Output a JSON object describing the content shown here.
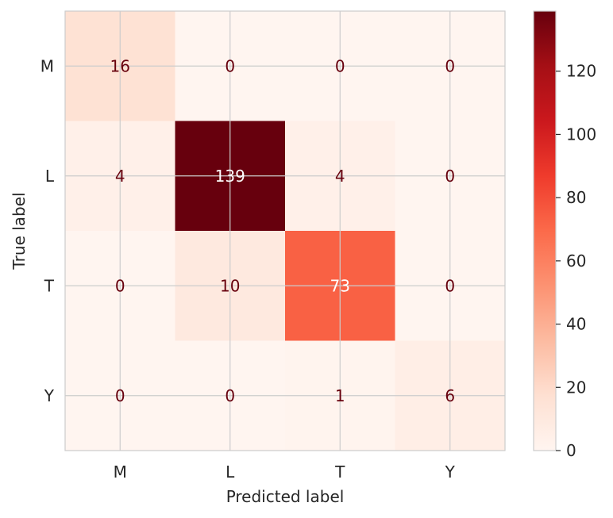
{
  "chart_data": {
    "type": "heatmap",
    "title": "",
    "xlabel": "Predicted label",
    "ylabel": "True label",
    "x_categories": [
      "M",
      "L",
      "T",
      "Y"
    ],
    "y_categories": [
      "M",
      "L",
      "T",
      "Y"
    ],
    "matrix": [
      [
        16,
        0,
        0,
        0
      ],
      [
        4,
        139,
        4,
        0
      ],
      [
        0,
        10,
        73,
        0
      ],
      [
        0,
        0,
        1,
        6
      ]
    ],
    "colormap": "Reds",
    "color_range": [
      0,
      139
    ],
    "colorbar": {
      "ticks": [
        0,
        20,
        40,
        60,
        80,
        100,
        120
      ]
    },
    "text_colors": {
      "dark": "#67000d",
      "light": "#ffffff"
    },
    "grid": true
  }
}
